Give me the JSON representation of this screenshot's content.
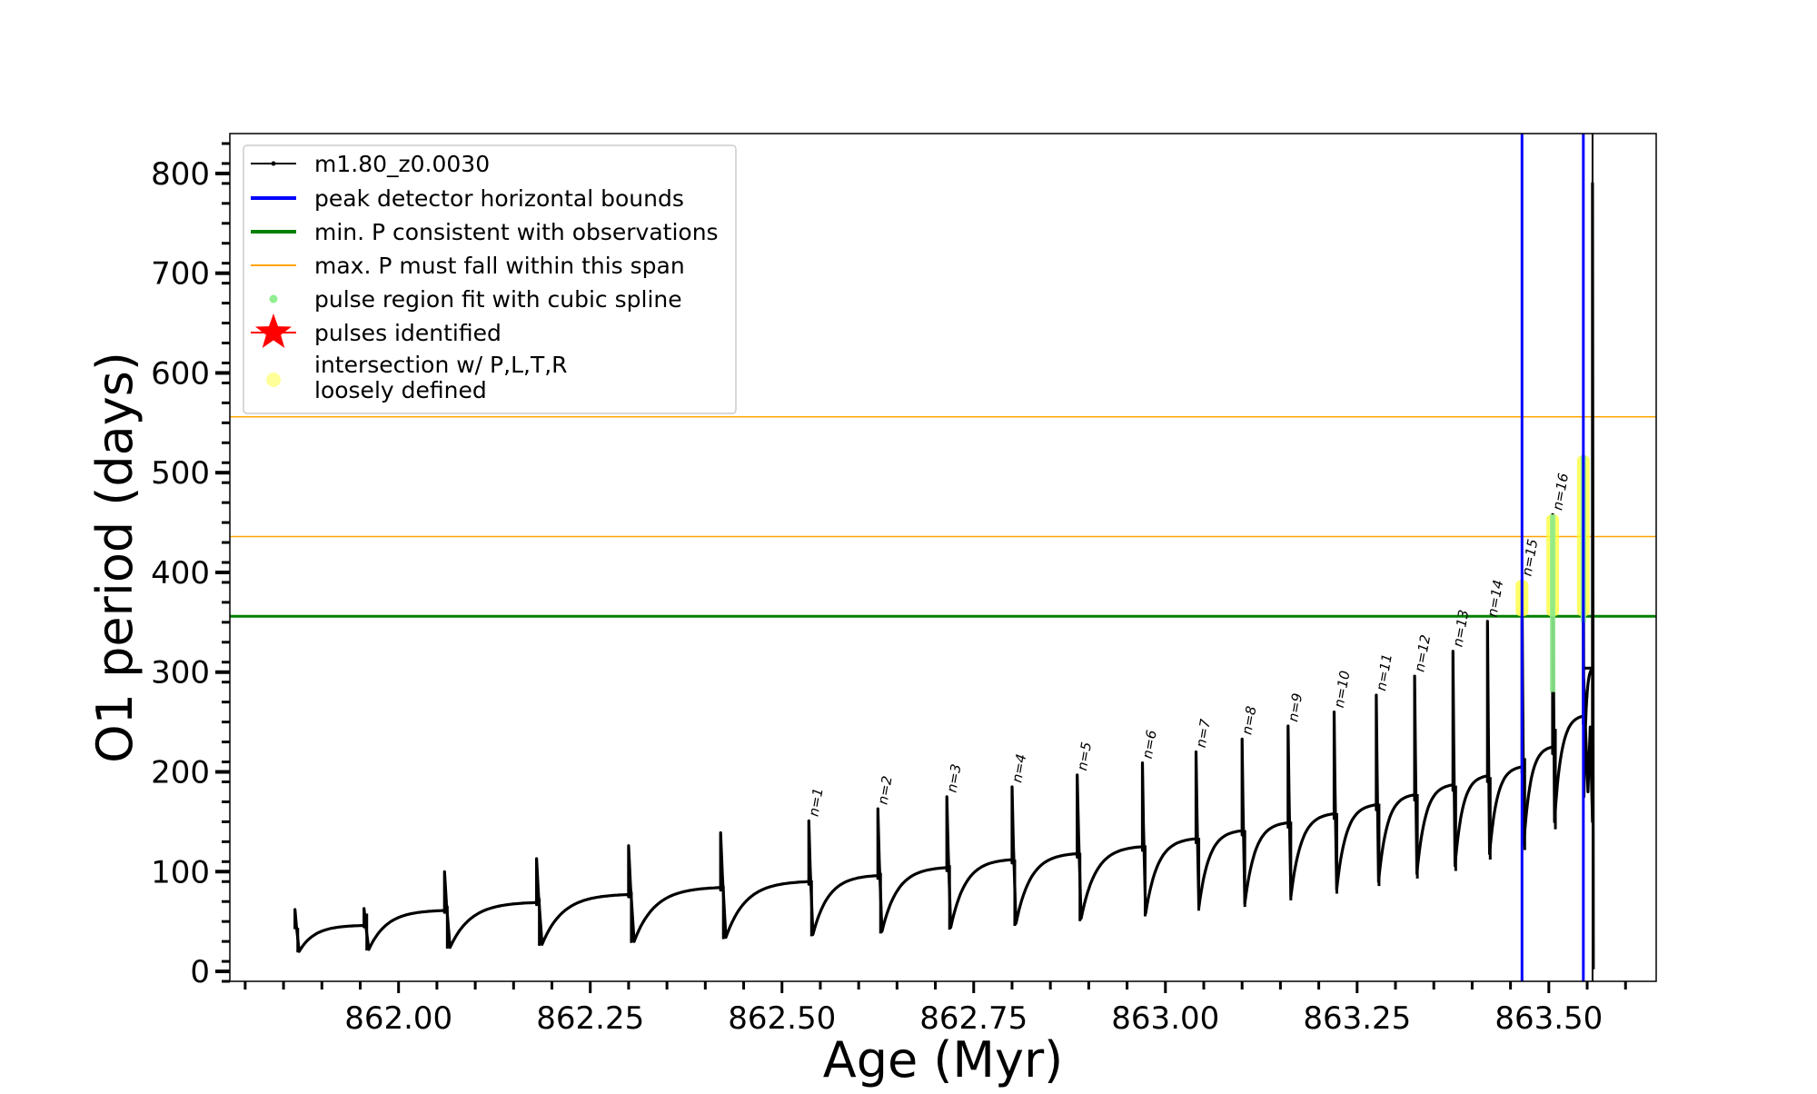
{
  "chart_data": {
    "type": "line",
    "xlabel": "Age (Myr)",
    "ylabel": "O1 period (days)",
    "xlim": [
      861.78,
      863.64
    ],
    "ylim": [
      -10,
      840
    ],
    "x_ticks": [
      862.0,
      862.25,
      862.5,
      862.75,
      863.0,
      863.25,
      863.5
    ],
    "x_tick_labels": [
      "862.00",
      "862.25",
      "862.50",
      "862.75",
      "863.00",
      "863.25",
      "863.50"
    ],
    "y_ticks": [
      0,
      100,
      200,
      300,
      400,
      500,
      600,
      700,
      800
    ],
    "y_tick_labels": [
      "0",
      "100",
      "200",
      "300",
      "400",
      "500",
      "600",
      "700",
      "800"
    ],
    "grid": false,
    "legend_position": "top-left",
    "legend": [
      {
        "label": "m1.80_z0.0030",
        "marker": "line-dot",
        "color": "#000000"
      },
      {
        "label": "peak detector horizontal bounds",
        "marker": "line",
        "color": "#0000ff"
      },
      {
        "label": "min. P consistent with observations",
        "marker": "line",
        "color": "#008000"
      },
      {
        "label": "max. P must fall within this span",
        "marker": "thin-line",
        "color": "#ffa500"
      },
      {
        "label": "pulse region fit with cubic spline",
        "marker": "dot",
        "color": "#90ee90"
      },
      {
        "label": "pulses identified",
        "marker": "star",
        "color": "#ff0000"
      },
      {
        "label": "intersection w/ P,L,T,R\nloosely defined",
        "marker": "circle",
        "color": "#ffff99"
      }
    ],
    "hlines": [
      {
        "name": "min. P consistent with observations",
        "y": 356,
        "color": "#008000",
        "width": 3
      },
      {
        "name": "max. P must fall within this span",
        "y": 436,
        "color": "#ffa500",
        "width": 1.5
      },
      {
        "name": "max. P must fall within this span",
        "y": 556,
        "color": "#ffa500",
        "width": 1.5
      }
    ],
    "vlines": [
      {
        "name": "peak detector horizontal bounds",
        "x": 863.465,
        "color": "#0000ff",
        "width": 3
      },
      {
        "name": "peak detector horizontal bounds",
        "x": 863.545,
        "color": "#0000ff",
        "width": 3
      },
      {
        "name": "m1.80_z0.0030 final spike",
        "x": 863.557,
        "color": "#000000",
        "width": 2
      }
    ],
    "series": [
      {
        "name": "m1.80_z0.0030",
        "color": "#000000",
        "cycles": [
          {
            "start": 861.865,
            "end": 861.955,
            "base": 20,
            "plateau": 46,
            "peak": 62
          },
          {
            "start": 861.955,
            "end": 862.06,
            "base": 22,
            "plateau": 61,
            "peak": 63
          },
          {
            "start": 862.06,
            "end": 862.18,
            "base": 24,
            "plateau": 69,
            "peak": 100
          },
          {
            "start": 862.18,
            "end": 862.3,
            "base": 27,
            "plateau": 77,
            "peak": 113
          },
          {
            "start": 862.3,
            "end": 862.42,
            "base": 30,
            "plateau": 84,
            "peak": 126
          },
          {
            "start": 862.42,
            "end": 862.535,
            "base": 34,
            "plateau": 90,
            "peak": 139
          },
          {
            "start": 862.535,
            "end": 862.625,
            "base": 37,
            "plateau": 96,
            "peak": 151
          },
          {
            "start": 862.625,
            "end": 862.715,
            "base": 40,
            "plateau": 104,
            "peak": 163
          },
          {
            "start": 862.715,
            "end": 862.8,
            "base": 44,
            "plateau": 112,
            "peak": 175
          },
          {
            "start": 862.8,
            "end": 862.885,
            "base": 48,
            "plateau": 118,
            "peak": 185
          },
          {
            "start": 862.885,
            "end": 862.97,
            "base": 53,
            "plateau": 125,
            "peak": 197
          },
          {
            "start": 862.97,
            "end": 863.04,
            "base": 58,
            "plateau": 133,
            "peak": 209
          },
          {
            "start": 863.04,
            "end": 863.1,
            "base": 64,
            "plateau": 141,
            "peak": 220
          },
          {
            "start": 863.1,
            "end": 863.16,
            "base": 68,
            "plateau": 149,
            "peak": 233
          },
          {
            "start": 863.16,
            "end": 863.22,
            "base": 75,
            "plateau": 158,
            "peak": 246
          },
          {
            "start": 863.22,
            "end": 863.275,
            "base": 82,
            "plateau": 167,
            "peak": 260
          },
          {
            "start": 863.275,
            "end": 863.325,
            "base": 90,
            "plateau": 177,
            "peak": 277
          },
          {
            "start": 863.325,
            "end": 863.375,
            "base": 98,
            "plateau": 187,
            "peak": 296
          },
          {
            "start": 863.375,
            "end": 863.42,
            "base": 106,
            "plateau": 196,
            "peak": 321
          },
          {
            "start": 863.42,
            "end": 863.465,
            "base": 118,
            "plateau": 205,
            "peak": 351
          },
          {
            "start": 863.465,
            "end": 863.505,
            "base": 128,
            "plateau": 225,
            "peak": 392
          },
          {
            "start": 863.505,
            "end": 863.545,
            "base": 150,
            "plateau": 256,
            "peak": 458
          },
          {
            "start": 863.545,
            "end": 863.557,
            "base": 175,
            "plateau": 304,
            "peak": 517
          }
        ],
        "tail": [
          [
            863.545,
            304
          ],
          [
            863.548,
            240
          ],
          [
            863.551,
            180
          ],
          [
            863.554,
            245
          ],
          [
            863.557,
            150
          ],
          [
            863.557,
            790
          ],
          [
            863.558,
            2
          ]
        ]
      }
    ],
    "spline_regions": [
      {
        "name": "pulse region fit with cubic spline",
        "x": 863.505,
        "y_from": 280,
        "y_to": 458
      },
      {
        "name": "pulse region fit with cubic spline",
        "x": 863.545,
        "y_from": 350,
        "y_to": 517
      }
    ],
    "highlight_regions": [
      {
        "name": "intersection w/ P,L,T,R loosely defined",
        "x": 863.465,
        "y_from": 356,
        "y_to": 392
      },
      {
        "name": "intersection w/ P,L,T,R loosely defined",
        "x": 863.505,
        "y_from": 356,
        "y_to": 458
      },
      {
        "name": "intersection w/ P,L,T,R loosely defined",
        "x": 863.545,
        "y_from": 356,
        "y_to": 517
      }
    ],
    "annotations": [
      {
        "text": "n=1",
        "x": 862.535,
        "y": 151
      },
      {
        "text": "n=2",
        "x": 862.625,
        "y": 163
      },
      {
        "text": "n=3",
        "x": 862.715,
        "y": 175
      },
      {
        "text": "n=4",
        "x": 862.8,
        "y": 185
      },
      {
        "text": "n=5",
        "x": 862.885,
        "y": 197
      },
      {
        "text": "n=6",
        "x": 862.97,
        "y": 209
      },
      {
        "text": "n=7",
        "x": 863.04,
        "y": 220
      },
      {
        "text": "n=8",
        "x": 863.1,
        "y": 233
      },
      {
        "text": "n=9",
        "x": 863.16,
        "y": 246
      },
      {
        "text": "n=10",
        "x": 863.22,
        "y": 260
      },
      {
        "text": "n=11",
        "x": 863.275,
        "y": 277
      },
      {
        "text": "n=12",
        "x": 863.325,
        "y": 296
      },
      {
        "text": "n=13",
        "x": 863.375,
        "y": 321
      },
      {
        "text": "n=14",
        "x": 863.42,
        "y": 351
      },
      {
        "text": "n=15",
        "x": 863.465,
        "y": 392
      },
      {
        "text": "n=16",
        "x": 863.505,
        "y": 458
      }
    ]
  }
}
